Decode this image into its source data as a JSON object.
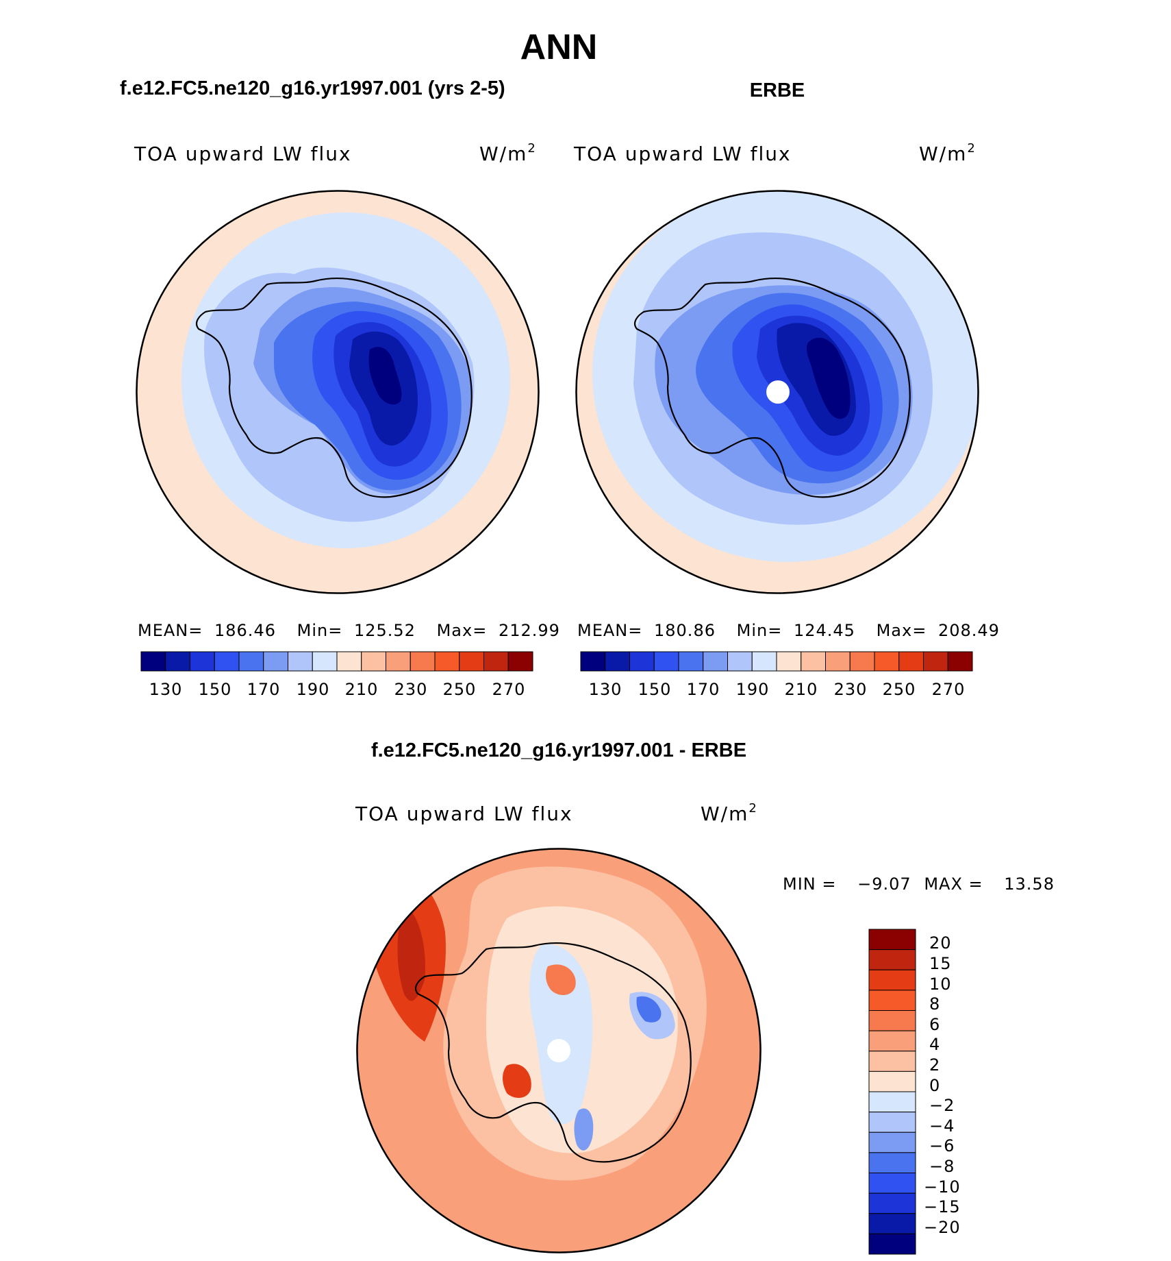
{
  "figure": {
    "season_title": "ANN",
    "colors": {
      "blue1": "#00007f",
      "blue2": "#0a1aa8",
      "blue3": "#1d35d8",
      "blue4": "#2f52f0",
      "blue5": "#4a74ef",
      "blue6": "#7c9cf3",
      "blue7": "#b0c6fb",
      "blue8": "#d6e6fd",
      "red1": "#fde3d2",
      "red2": "#fcc0a2",
      "red3": "#f9a07a",
      "red4": "#f67a4e",
      "red5": "#f55a28",
      "red6": "#e43c14",
      "red7": "#c0260f",
      "red8": "#8b0000",
      "coast": "#000000"
    }
  },
  "panels": [
    {
      "id": "model",
      "title": "f.e12.FC5.ne120_g16.yr1997.001 (yrs 2-5)",
      "variable": "TOA upward LW flux",
      "units": "W/m",
      "units_sup": "2",
      "stats": {
        "mean_label": "MEAN=",
        "mean": "186.46",
        "min_label": "Min=",
        "min": "125.52",
        "max_label": "Max=",
        "max": "212.99"
      },
      "colorbar_labels": [
        "130",
        "150",
        "170",
        "190",
        "210",
        "230",
        "250",
        "270"
      ]
    },
    {
      "id": "obs",
      "title": "ERBE",
      "variable": "TOA upward LW flux",
      "units": "W/m",
      "units_sup": "2",
      "stats": {
        "mean_label": "MEAN=",
        "mean": "180.86",
        "min_label": "Min=",
        "min": "124.45",
        "max_label": "Max=",
        "max": "208.49"
      },
      "colorbar_labels": [
        "130",
        "150",
        "170",
        "190",
        "210",
        "230",
        "250",
        "270"
      ]
    },
    {
      "id": "diff",
      "title": "f.e12.FC5.ne120_g16.yr1997.001 - ERBE",
      "variable": "TOA upward LW flux",
      "units": "W/m",
      "units_sup": "2",
      "stats": {
        "min_label": "MIN =",
        "min": "−9.07",
        "max_label": "MAX =",
        "max": "13.58"
      },
      "colorbar_labels": [
        "20",
        "15",
        "10",
        "8",
        "6",
        "4",
        "2",
        "0",
        "−2",
        "−4",
        "−6",
        "−8",
        "−10",
        "−15",
        "−20"
      ]
    }
  ]
}
